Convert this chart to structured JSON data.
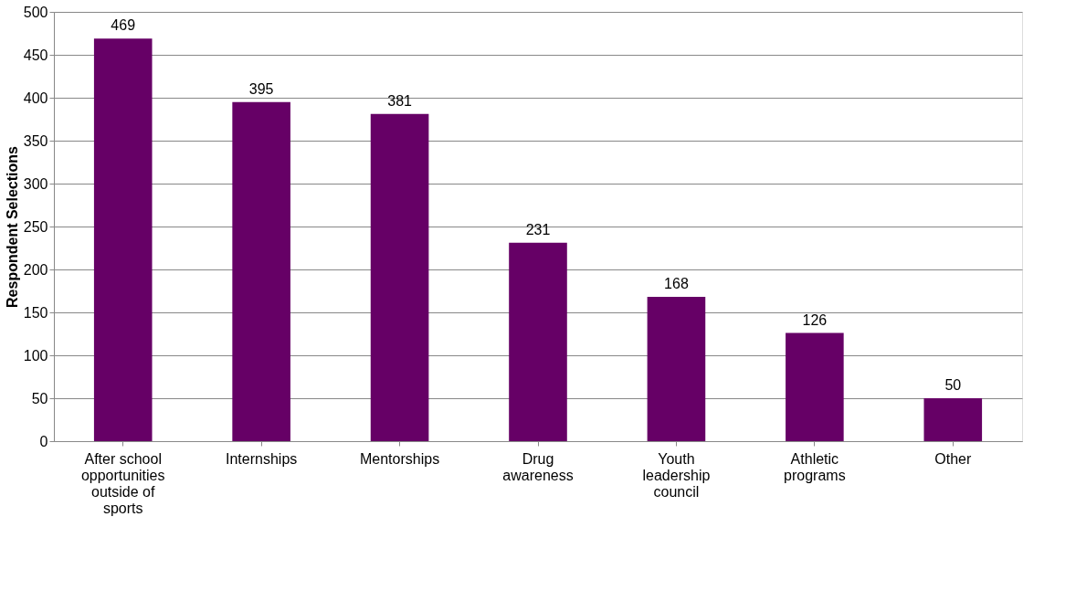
{
  "chart_data": {
    "type": "bar",
    "ylabel": "Respondent Selections",
    "categories": [
      "After school opportunities outside of sports",
      "Internships",
      "Mentorships",
      "Drug awareness",
      "Youth leadership council",
      "Athletic programs",
      "Other"
    ],
    "values": [
      469,
      395,
      381,
      231,
      168,
      126,
      50
    ],
    "color": "#660066",
    "ylim": [
      0,
      500
    ],
    "yticks": [
      0,
      50,
      100,
      150,
      200,
      250,
      300,
      350,
      400,
      450,
      500
    ],
    "grid": "y",
    "data_labels": true
  }
}
